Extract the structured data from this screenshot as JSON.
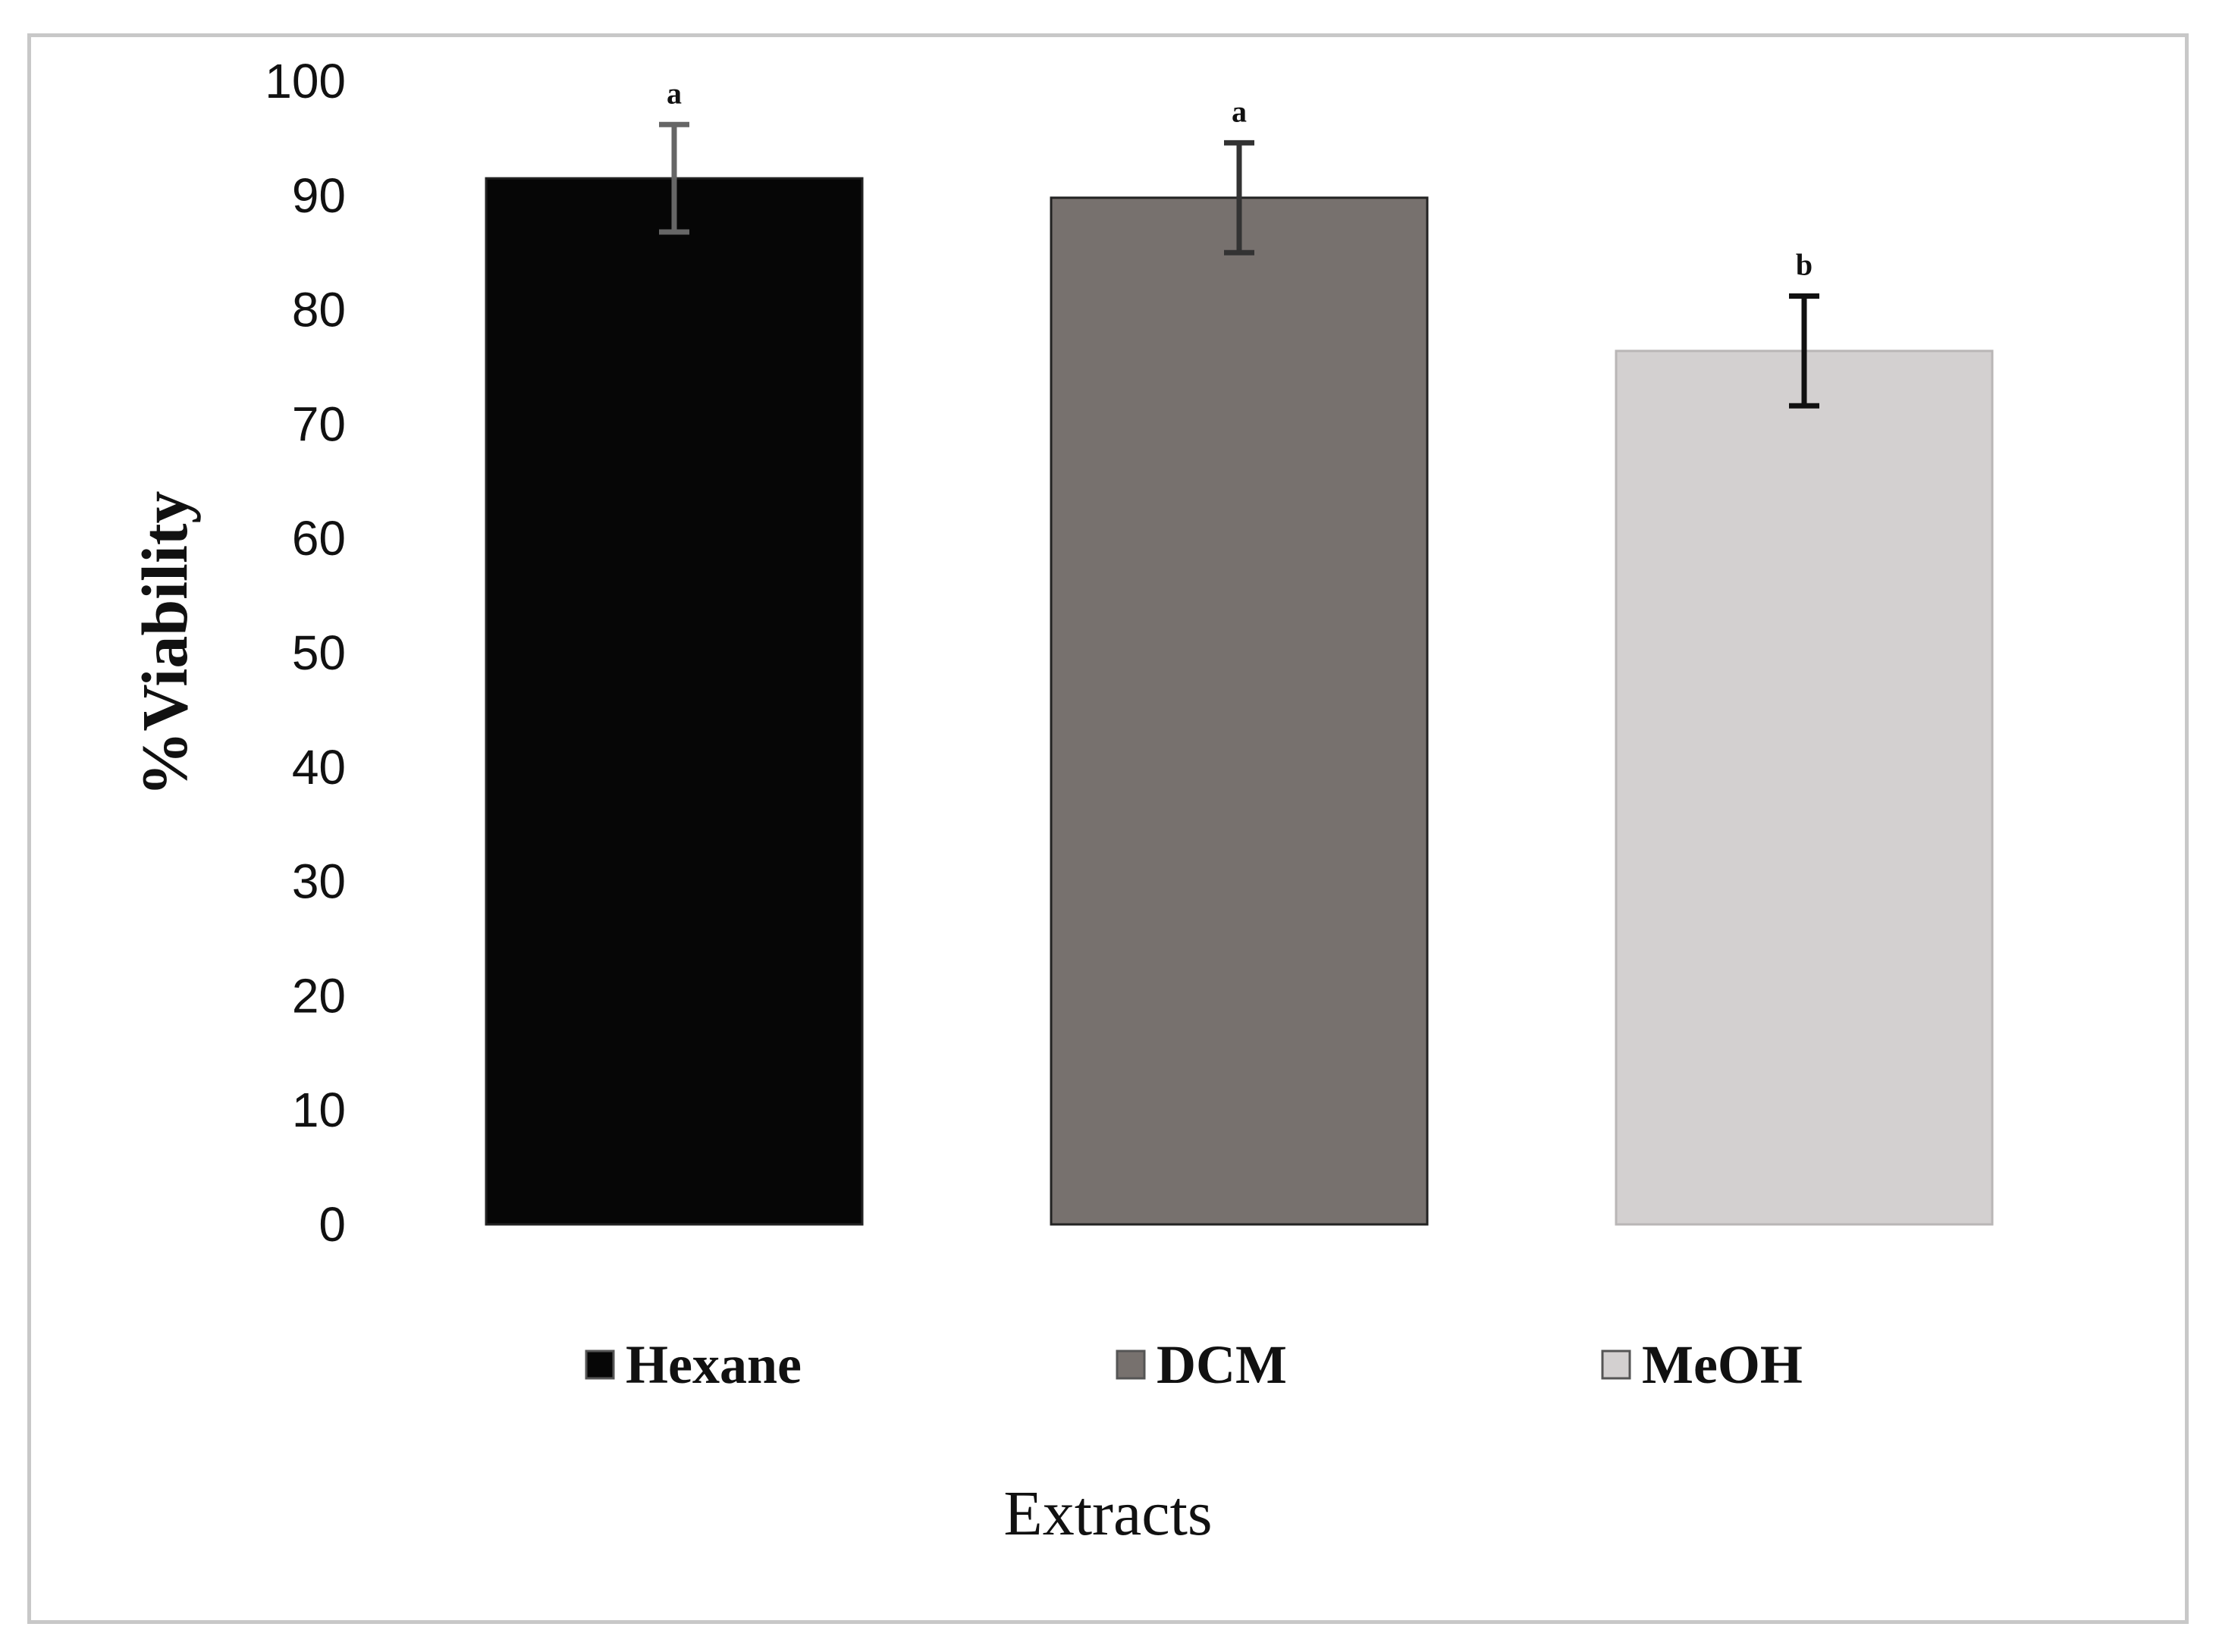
{
  "chart_data": {
    "type": "bar",
    "categories": [
      "Hexane",
      "DCM",
      "MeOH"
    ],
    "values": [
      91.5,
      89.8,
      76.4
    ],
    "errors": [
      4.7,
      4.8,
      4.8
    ],
    "significance": [
      "a",
      "a",
      "b"
    ],
    "colors": [
      "#060606",
      "#77716e",
      "#d3d0d0"
    ],
    "error_bar_colors": [
      "#666666",
      "#333333",
      "#111111"
    ],
    "ylim": [
      0,
      100
    ],
    "yticks": [
      "0",
      "10",
      "20",
      "30",
      "40",
      "50",
      "60",
      "70",
      "80",
      "90",
      "100"
    ],
    "ylabel": "%Viability",
    "xlabel": "Extracts",
    "legend": [
      "Hexane",
      "DCM",
      "MeOH"
    ],
    "legend_position": "bottom",
    "grid": false
  }
}
